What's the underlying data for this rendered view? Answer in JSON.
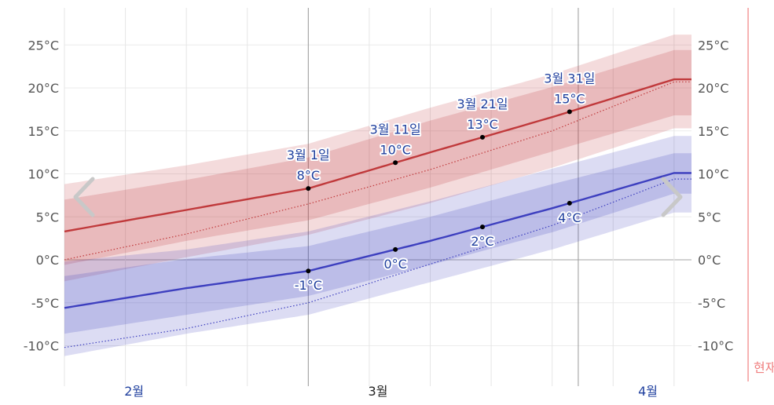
{
  "chart_data": {
    "type": "area",
    "x_range": [
      "2월 1일",
      "4월 14일"
    ],
    "ylim": [
      -15,
      28
    ],
    "yticks": [
      -10,
      -5,
      0,
      5,
      10,
      15,
      20,
      25
    ],
    "ytick_labels": [
      "-10°C",
      "-5°C",
      "0°C",
      "5°C",
      "10°C",
      "15°C",
      "20°C",
      "25°C"
    ],
    "months": [
      {
        "label": "2월",
        "day": 8
      },
      {
        "label": "3월",
        "day": 36
      },
      {
        "label": "4월",
        "day": 67
      }
    ],
    "weekly_grid_days": [
      0,
      7,
      14,
      21,
      28,
      35,
      42,
      49,
      56,
      63,
      70
    ],
    "month_start_days": [
      28,
      59
    ],
    "series": [
      {
        "name": "",
        "color": "#c0393b",
        "x_days": [
          0,
          14,
          28,
          42,
          56,
          70
        ],
        "mean": [
          3.3,
          5.8,
          8.3,
          12.5,
          16.6,
          21.0
        ],
        "record": [
          0,
          3.0,
          6.5,
          10.5,
          15.0,
          20.7
        ],
        "p25": [
          -0.6,
          2.2,
          4.6,
          8.4,
          12.6,
          16.8
        ],
        "p75": [
          7.0,
          9.3,
          11.9,
          16.2,
          20.1,
          24.4
        ],
        "p10": [
          -2.5,
          0.3,
          2.9,
          6.6,
          10.7,
          15.3
        ],
        "p90": [
          8.8,
          11.0,
          13.5,
          17.7,
          21.6,
          26.2
        ]
      },
      {
        "name": "",
        "color": "#3d3fbf",
        "x_days": [
          0,
          14,
          28,
          42,
          56,
          70
        ],
        "mean": [
          -5.6,
          -3.3,
          -1.3,
          2.2,
          6.0,
          10.1
        ],
        "record": [
          -10.2,
          -8.0,
          -5.0,
          -0.5,
          4.0,
          9.4
        ],
        "p25": [
          -8.6,
          -6.4,
          -4.2,
          -0.6,
          3.2,
          7.7
        ],
        "p75": [
          -1.9,
          0.1,
          1.6,
          5.0,
          8.8,
          12.4
        ],
        "p10": [
          -11.2,
          -8.6,
          -6.4,
          -2.6,
          1.2,
          5.5
        ],
        "p90": [
          -0.2,
          1.2,
          3.3,
          6.8,
          10.6,
          14.4
        ]
      }
    ],
    "annotations": [
      {
        "date": "3월 1일",
        "day": 28,
        "high": 8,
        "high_label": "8°C",
        "low": -1,
        "low_label": "-1°C"
      },
      {
        "date": "3월 11일",
        "day": 38,
        "high": 10,
        "high_label": "10°C",
        "low": 0,
        "low_label": "0°C"
      },
      {
        "date": "3월 21일",
        "day": 48,
        "high": 13,
        "high_label": "13°C",
        "low": 2,
        "low_label": "2°C"
      },
      {
        "date": "3월 31일",
        "day": 58,
        "high": 15,
        "high_label": "15°C",
        "low": 4,
        "low_label": "4°C"
      }
    ],
    "now": {
      "label": "현재",
      "day": 78.5,
      "color": "#f08080"
    }
  }
}
